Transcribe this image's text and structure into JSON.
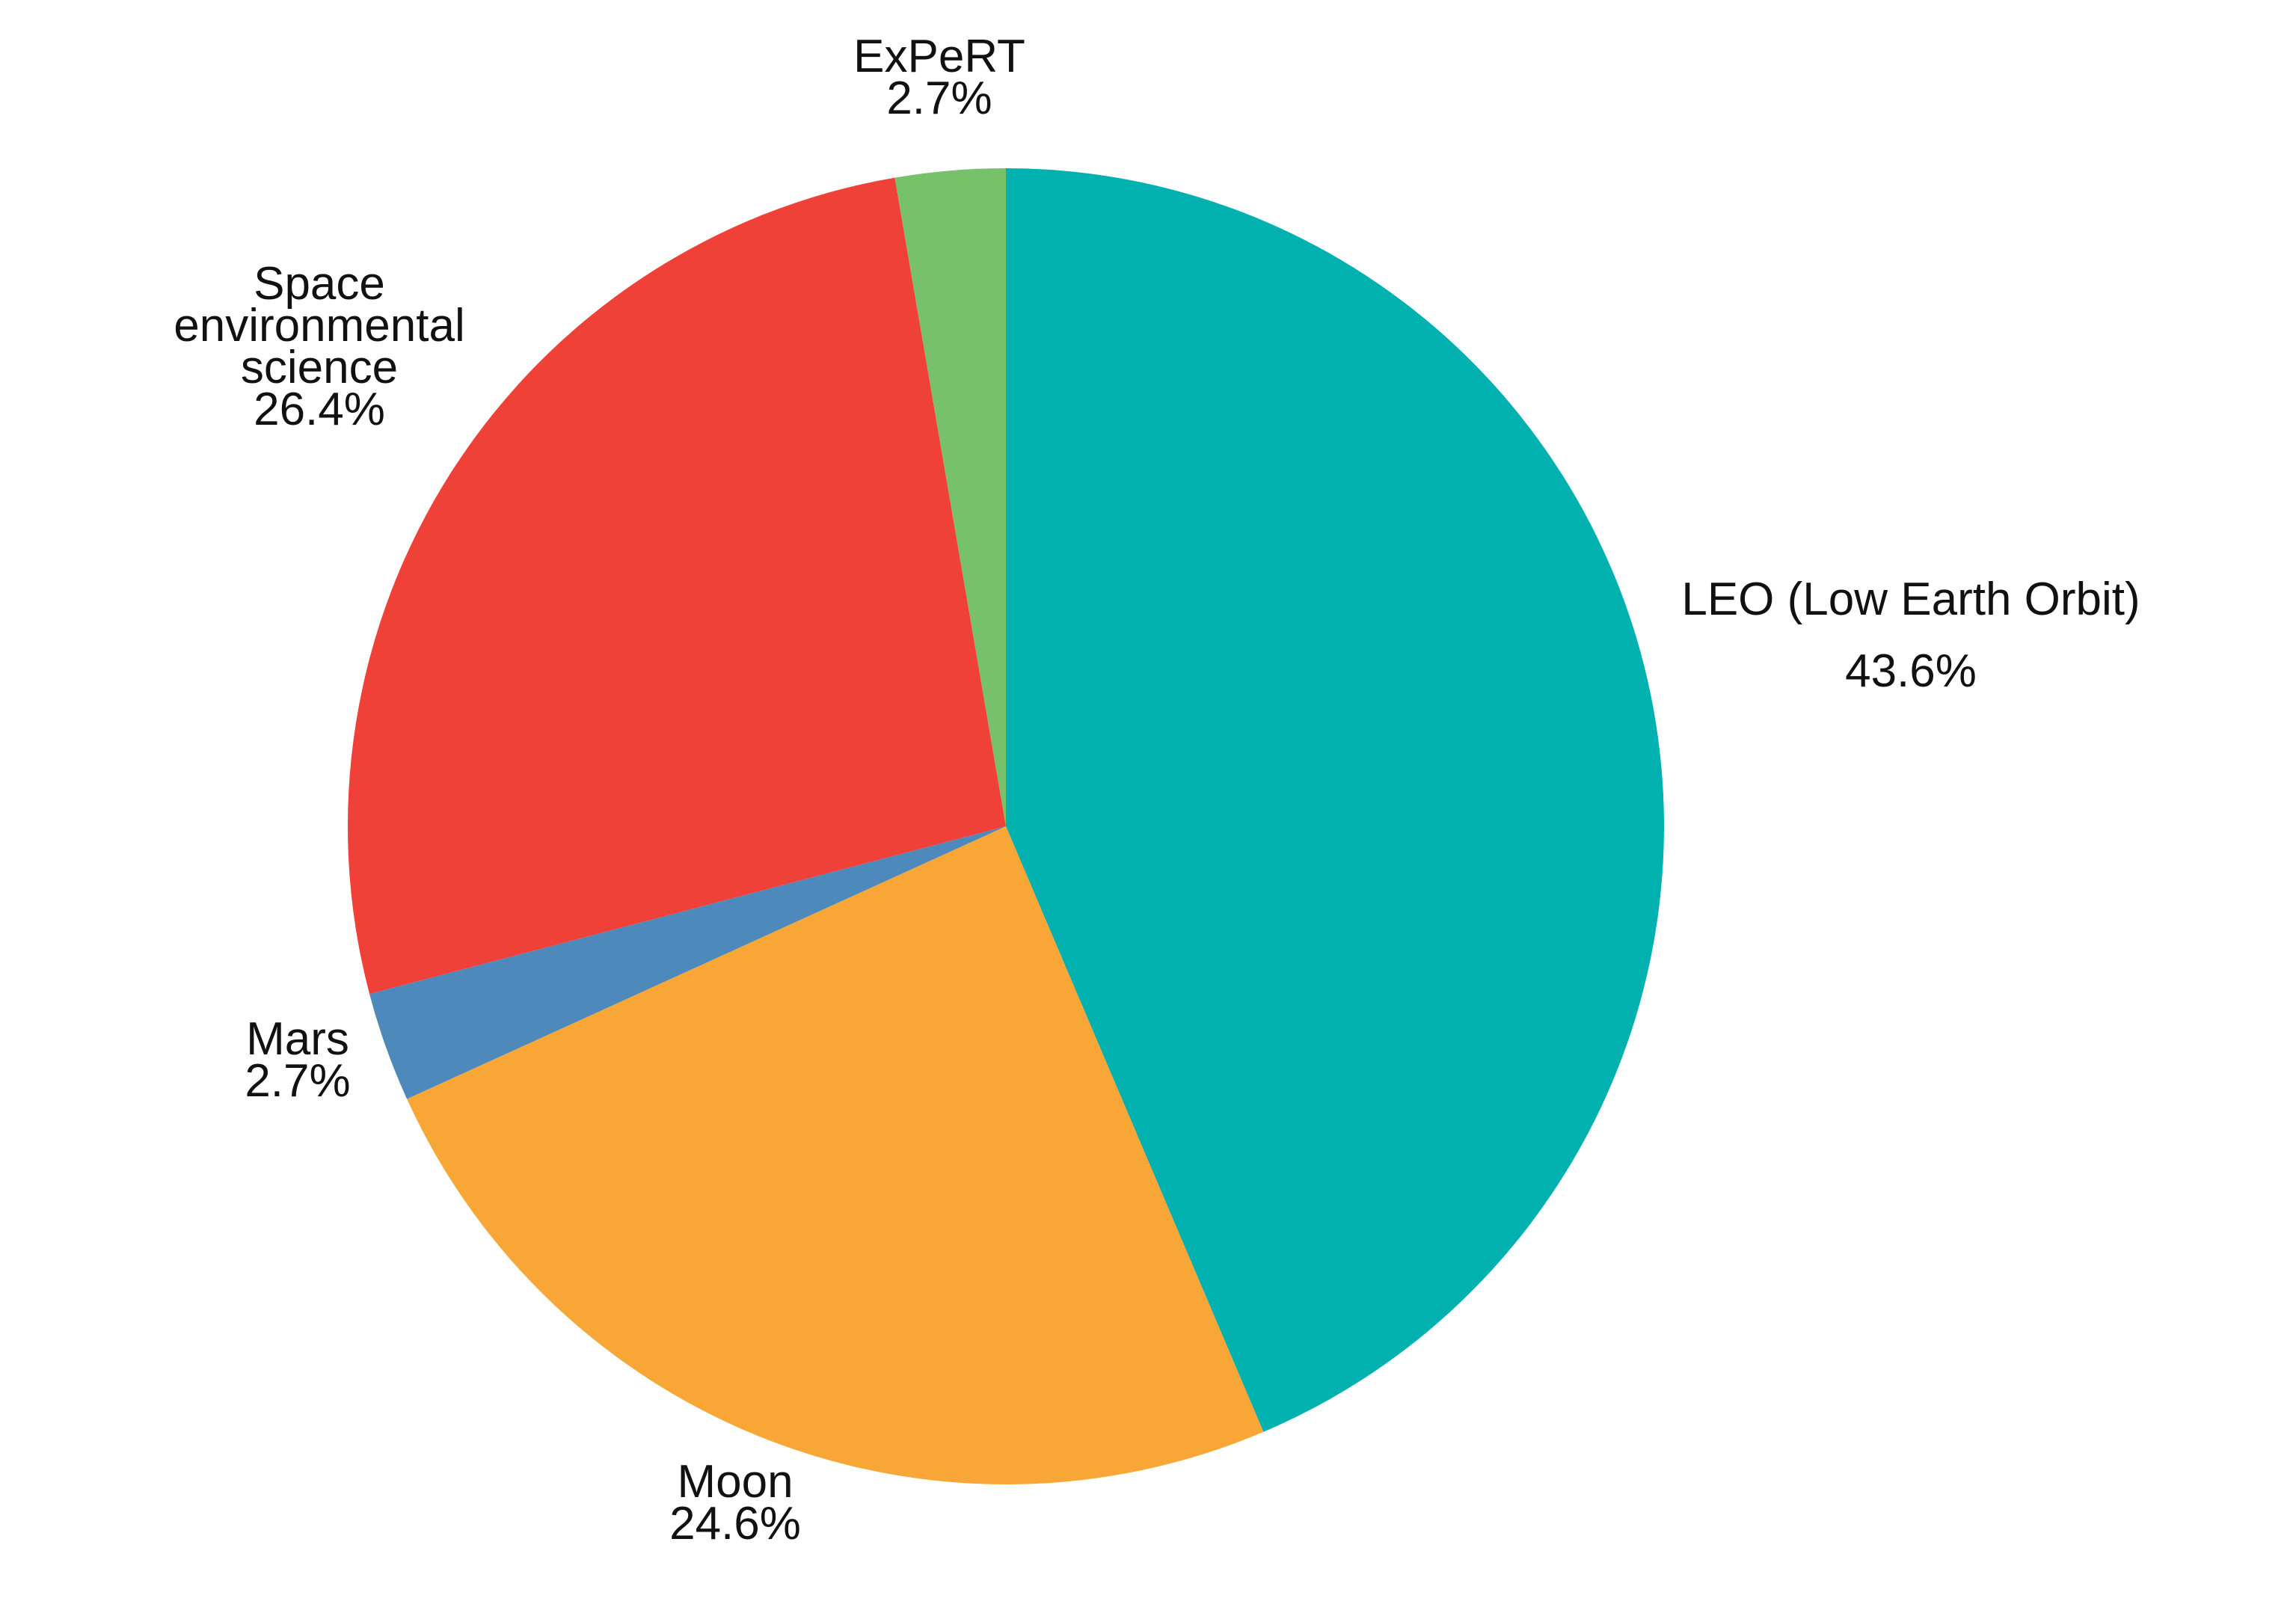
{
  "chart_data": {
    "type": "pie",
    "start_angle_deg": 0,
    "direction": "clockwise",
    "slices": [
      {
        "label": "LEO (Low Earth Orbit)",
        "value": 43.6,
        "value_label": "43.6%",
        "color": "#00B1B0"
      },
      {
        "label": "Moon",
        "value": 24.6,
        "value_label": "24.6%",
        "color": "#F8A736"
      },
      {
        "label": "Mars",
        "value": 2.7,
        "value_label": "2.7%",
        "color": "#4E89BC"
      },
      {
        "label": "Space environmental science",
        "value": 26.4,
        "value_label": "26.4%",
        "color": "#EF4138"
      },
      {
        "label": "ExPeRT",
        "value": 2.7,
        "value_label": "2.7%",
        "color": "#77C16A"
      }
    ]
  }
}
